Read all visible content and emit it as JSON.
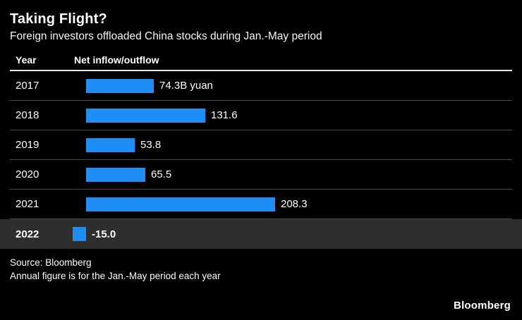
{
  "header": {
    "title": "Taking Flight?",
    "subtitle": "Foreign investors offloaded China stocks during Jan.-May period"
  },
  "table": {
    "col1": "Year",
    "col2": "Net inflow/outflow"
  },
  "chart_data": {
    "type": "bar",
    "orientation": "horizontal",
    "categories": [
      "2017",
      "2018",
      "2019",
      "2020",
      "2021",
      "2022"
    ],
    "values": [
      74.3,
      131.6,
      53.8,
      65.5,
      208.3,
      -15.0
    ],
    "labels": [
      "74.3B yuan",
      "131.6",
      "53.8",
      "65.5",
      "208.3",
      "-15.0"
    ],
    "unit": "B yuan",
    "highlight_index": 5,
    "bar_color": "#1e8ef5",
    "title": "Taking Flight?",
    "xlabel": "Net inflow/outflow",
    "ylabel": "Year",
    "xlim": [
      -15.0,
      208.3
    ],
    "grid": "row-separators",
    "legend": "none"
  },
  "footer": {
    "source": "Source: Bloomberg",
    "note": "Annual figure is for the Jan.-May period each year",
    "brand": "Bloomberg"
  }
}
